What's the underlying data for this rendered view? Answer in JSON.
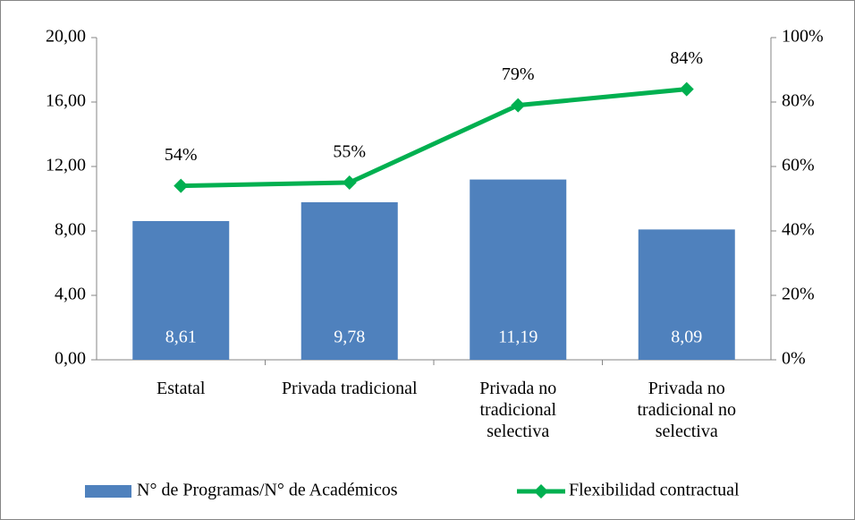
{
  "chart_data": {
    "type": "bar",
    "categories": [
      "Estatal",
      "Privada tradicional",
      "Privada no tradicional selectiva",
      "Privada no tradicional no selectiva"
    ],
    "series": [
      {
        "name": "N° de Programas/N° de Académicos",
        "type": "bar",
        "color": "#4f81bd",
        "values": [
          8.61,
          9.78,
          11.19,
          8.09
        ],
        "value_labels": [
          "8,61",
          "9,78",
          "11,19",
          "8,09"
        ]
      },
      {
        "name": "Flexibilidad contractual",
        "type": "line",
        "axis": "y2",
        "color": "#00b050",
        "values": [
          54,
          55,
          79,
          84
        ],
        "value_labels": [
          "54%",
          "55%",
          "79%",
          "84%"
        ]
      }
    ],
    "ylim": [
      0,
      20
    ],
    "yticks": [
      {
        "value": 0,
        "label": "0,00"
      },
      {
        "value": 4,
        "label": "4,00"
      },
      {
        "value": 8,
        "label": "8,00"
      },
      {
        "value": 12,
        "label": "12,00"
      },
      {
        "value": 16,
        "label": "16,00"
      },
      {
        "value": 20,
        "label": "20,00"
      }
    ],
    "y2lim": [
      0,
      100
    ],
    "y2ticks": [
      {
        "value": 0,
        "label": "0%"
      },
      {
        "value": 20,
        "label": "20%"
      },
      {
        "value": 40,
        "label": "40%"
      },
      {
        "value": 60,
        "label": "60%"
      },
      {
        "value": 80,
        "label": "80%"
      },
      {
        "value": 100,
        "label": "100%"
      }
    ],
    "legend": "bottom"
  }
}
